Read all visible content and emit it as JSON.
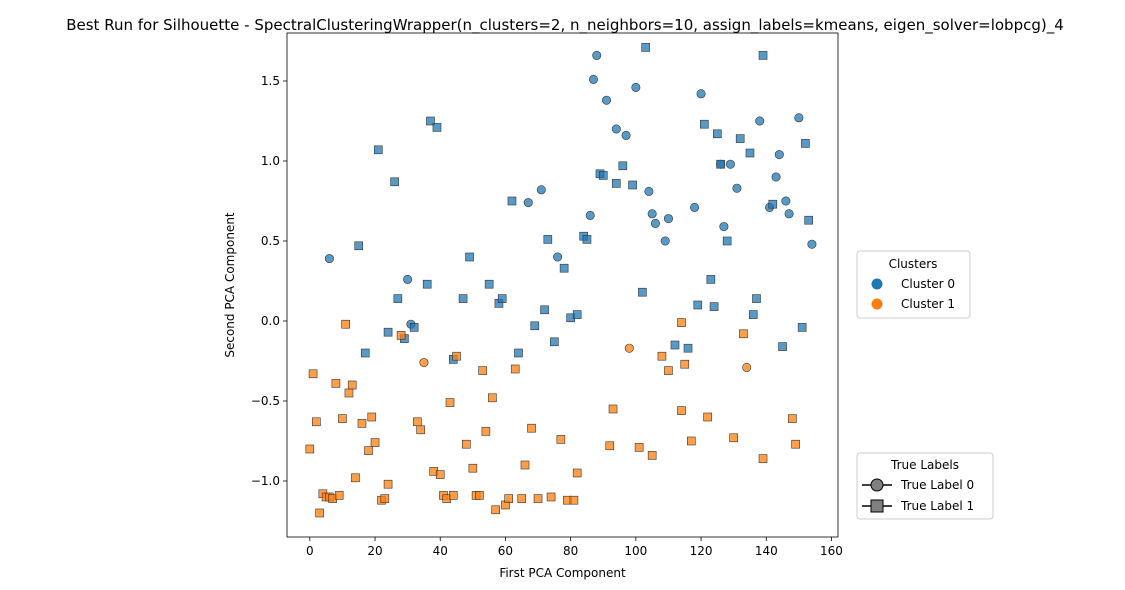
{
  "chart_data": {
    "type": "scatter",
    "title": "Best Run for Silhouette - SpectralClusteringWrapper(n_clusters=2, n_neighbors=10, assign_labels=kmeans, eigen_solver=lobpcg)_4",
    "xlabel": "First PCA Component",
    "ylabel": "Second PCA Component",
    "xlim": [
      -7,
      162
    ],
    "ylim": [
      -1.35,
      1.8
    ],
    "xticks": [
      0,
      20,
      40,
      60,
      80,
      100,
      120,
      140,
      160
    ],
    "yticks": [
      -1.0,
      -0.5,
      0.0,
      0.5,
      1.0,
      1.5
    ],
    "ytick_labels": [
      "−1.0",
      "−0.5",
      "0.0",
      "0.5",
      "1.0",
      "1.5"
    ],
    "grid": false,
    "colors": {
      "cluster0": "#1f77b4",
      "cluster1": "#ff7f0e"
    },
    "legend_clusters": {
      "title": "Clusters",
      "placement": "right-middle",
      "entries": [
        "Cluster 0",
        "Cluster 1"
      ]
    },
    "legend_true_labels": {
      "title": "True Labels",
      "placement": "right-bottom",
      "entries": [
        "True Label 0",
        "True Label 1"
      ]
    },
    "series": [
      {
        "cluster": 0,
        "true_label": 0,
        "x": [
          6,
          30,
          31,
          71,
          67,
          76,
          86,
          87,
          88,
          91,
          94,
          100,
          97,
          104,
          105,
          106,
          109,
          110,
          118,
          120,
          126,
          127,
          129,
          131,
          138,
          141,
          143,
          144,
          146,
          147,
          150,
          154
        ],
        "y": [
          0.39,
          0.26,
          -0.02,
          0.82,
          0.74,
          0.4,
          0.66,
          1.51,
          1.66,
          1.38,
          1.2,
          1.46,
          1.16,
          0.81,
          0.67,
          0.61,
          0.5,
          0.64,
          0.71,
          1.42,
          0.98,
          0.59,
          0.98,
          0.83,
          1.25,
          0.71,
          0.9,
          1.04,
          0.75,
          0.67,
          1.27,
          0.48
        ]
      },
      {
        "cluster": 0,
        "true_label": 1,
        "x": [
          15,
          17,
          21,
          24,
          26,
          27,
          29,
          32,
          36,
          37,
          39,
          44,
          47,
          49,
          55,
          58,
          59,
          62,
          64,
          69,
          72,
          73,
          75,
          78,
          80,
          82,
          84,
          85,
          89,
          90,
          94,
          96,
          99,
          102,
          103,
          112,
          116,
          119,
          121,
          123,
          124,
          125,
          126,
          128,
          132,
          135,
          136,
          137,
          139,
          142,
          145,
          151,
          152,
          153
        ],
        "y": [
          0.47,
          -0.2,
          1.07,
          -0.07,
          0.87,
          0.14,
          -0.11,
          -0.04,
          0.23,
          1.25,
          1.21,
          -0.24,
          0.14,
          0.4,
          0.23,
          0.11,
          0.14,
          0.75,
          -0.2,
          -0.03,
          0.07,
          0.51,
          -0.13,
          0.33,
          0.02,
          0.04,
          0.53,
          0.51,
          0.92,
          0.91,
          0.86,
          0.97,
          0.85,
          0.18,
          1.71,
          -0.15,
          -0.17,
          0.1,
          1.23,
          0.26,
          0.09,
          1.17,
          0.98,
          0.5,
          1.14,
          1.05,
          0.04,
          0.14,
          1.66,
          0.73,
          -0.16,
          -0.04,
          1.11,
          0.63
        ]
      },
      {
        "cluster": 1,
        "true_label": 0,
        "x": [
          35,
          98,
          134
        ],
        "y": [
          -0.26,
          -0.17,
          -0.29
        ]
      },
      {
        "cluster": 1,
        "true_label": 1,
        "x": [
          0,
          1,
          2,
          3,
          4,
          5,
          6,
          7,
          8,
          9,
          10,
          11,
          12,
          13,
          14,
          16,
          18,
          19,
          20,
          22,
          23,
          24,
          28,
          33,
          34,
          38,
          40,
          41,
          42,
          43,
          44,
          45,
          48,
          50,
          51,
          52,
          53,
          54,
          56,
          57,
          60,
          61,
          63,
          65,
          66,
          68,
          70,
          74,
          77,
          79,
          81,
          82,
          92,
          93,
          101,
          105,
          108,
          110,
          114,
          115,
          117,
          122,
          130,
          133,
          139,
          148,
          149,
          114
        ],
        "y": [
          -0.8,
          -0.33,
          -0.63,
          -1.2,
          -1.08,
          -1.1,
          -1.1,
          -1.11,
          -0.39,
          -1.09,
          -0.61,
          -0.02,
          -0.45,
          -0.4,
          -0.98,
          -0.64,
          -0.81,
          -0.6,
          -0.76,
          -1.12,
          -1.11,
          -1.02,
          -0.09,
          -0.63,
          -0.68,
          -0.94,
          -0.96,
          -1.09,
          -1.11,
          -0.51,
          -1.09,
          -0.22,
          -0.77,
          -0.92,
          -1.09,
          -1.09,
          -0.31,
          -0.69,
          -0.48,
          -1.18,
          -1.15,
          -1.11,
          -0.3,
          -1.11,
          -0.9,
          -0.67,
          -1.11,
          -1.1,
          -0.74,
          -1.12,
          -1.12,
          -0.95,
          -0.78,
          -0.55,
          -0.79,
          -0.84,
          -0.22,
          -0.31,
          -0.56,
          -0.27,
          -0.75,
          -0.6,
          -0.73,
          -0.08,
          -0.86,
          -0.61,
          -0.77,
          -0.01
        ]
      }
    ]
  }
}
